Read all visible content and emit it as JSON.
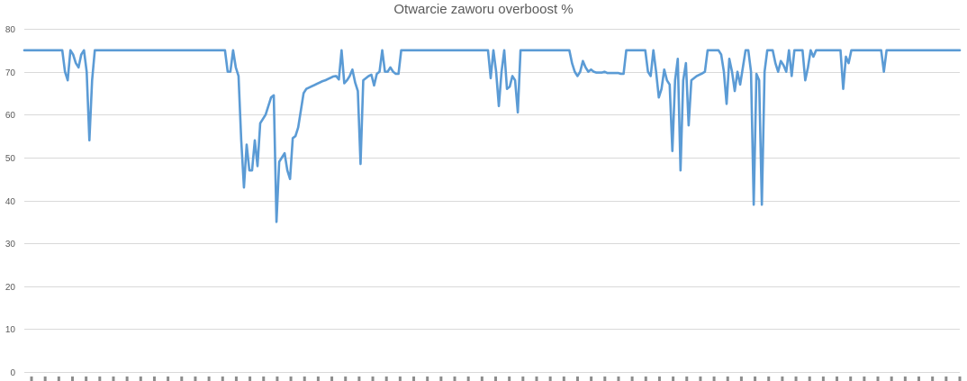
{
  "chart_data": {
    "type": "line",
    "title": "Otwarcie zaworu overboost %",
    "xlabel": "",
    "ylabel": "",
    "ylim": [
      0,
      80
    ],
    "yticks": [
      0,
      10,
      20,
      30,
      40,
      50,
      60,
      70,
      80
    ],
    "grid": true,
    "legend": "none",
    "x_tick_labels_legible": false,
    "series": [
      {
        "color": "#5b9bd5",
        "values": [
          75,
          75,
          75,
          75,
          75,
          75,
          75,
          75,
          75,
          75,
          75,
          75,
          75,
          75,
          75,
          70,
          68,
          75,
          74,
          72,
          71,
          74,
          75,
          70,
          54,
          68,
          75,
          75,
          75,
          75,
          75,
          75,
          75,
          75,
          75,
          75,
          75,
          75,
          75,
          75,
          75,
          75,
          75,
          75,
          75,
          75,
          75,
          75,
          75,
          75,
          75,
          75,
          75,
          75,
          75,
          75,
          75,
          75,
          75,
          75,
          75,
          75,
          75,
          75,
          75,
          75,
          75,
          75,
          75,
          75,
          75,
          75,
          75,
          75,
          75,
          70,
          70,
          75,
          71,
          69,
          54,
          43,
          53,
          47,
          47,
          54,
          48,
          58,
          59,
          60,
          62,
          64,
          64.5,
          35,
          49,
          50,
          51,
          47,
          45,
          54.5,
          55,
          57,
          61,
          65,
          66,
          66.3,
          66.6,
          66.9,
          67.2,
          67.5,
          67.8,
          68,
          68.3,
          68.6,
          68.9,
          69,
          68.2,
          75,
          67.3,
          68,
          69,
          70.5,
          67.5,
          65.5,
          48.5,
          68,
          68.5,
          69,
          69.3,
          66.8,
          69.5,
          70,
          75,
          70,
          70,
          71,
          70,
          69.5,
          69.5,
          75,
          75,
          75,
          75,
          75,
          75,
          75,
          75,
          75,
          75,
          75,
          75,
          75,
          75,
          75,
          75,
          75,
          75,
          75,
          75,
          75,
          75,
          75,
          75,
          75,
          75,
          75,
          75,
          75,
          75,
          75,
          75,
          75,
          68.5,
          75,
          70,
          62,
          70,
          75,
          66,
          66.5,
          69,
          68,
          60.5,
          75,
          75,
          75,
          75,
          75,
          75,
          75,
          75,
          75,
          75,
          75,
          75,
          75,
          75,
          75,
          75,
          75,
          75,
          75,
          72,
          70,
          69,
          70,
          72.5,
          71,
          70,
          70.5,
          70,
          69.8,
          69.8,
          69.8,
          70,
          69.7,
          69.7,
          69.7,
          69.7,
          69.7,
          69.5,
          69.5,
          75,
          75,
          75,
          75,
          75,
          75,
          75,
          75,
          70,
          69,
          75,
          70,
          64,
          66,
          70.5,
          68,
          67,
          51.5,
          68,
          73,
          47,
          68,
          72,
          57.5,
          68,
          68.5,
          69,
          69.3,
          69.6,
          70,
          75,
          75,
          75,
          75,
          75,
          74,
          70,
          62.5,
          73,
          70,
          65.5,
          70,
          67,
          71,
          75,
          75,
          70,
          39,
          69.5,
          68,
          39,
          70,
          75,
          75,
          75,
          72,
          70,
          72.5,
          71.5,
          70,
          75,
          69,
          75,
          75,
          75,
          75,
          68,
          71,
          75,
          73.5,
          75,
          75,
          75,
          75,
          75,
          75,
          75,
          75,
          75,
          75,
          66,
          73.5,
          72,
          75,
          75,
          75,
          75,
          75,
          75,
          75,
          75,
          75,
          75,
          75,
          75,
          70,
          75,
          75,
          75,
          75,
          75,
          75,
          75,
          75,
          75,
          75,
          75,
          75,
          75,
          75,
          75,
          75,
          75,
          75,
          75,
          75,
          75,
          75,
          75,
          75,
          75,
          75,
          75,
          75
        ]
      }
    ]
  }
}
